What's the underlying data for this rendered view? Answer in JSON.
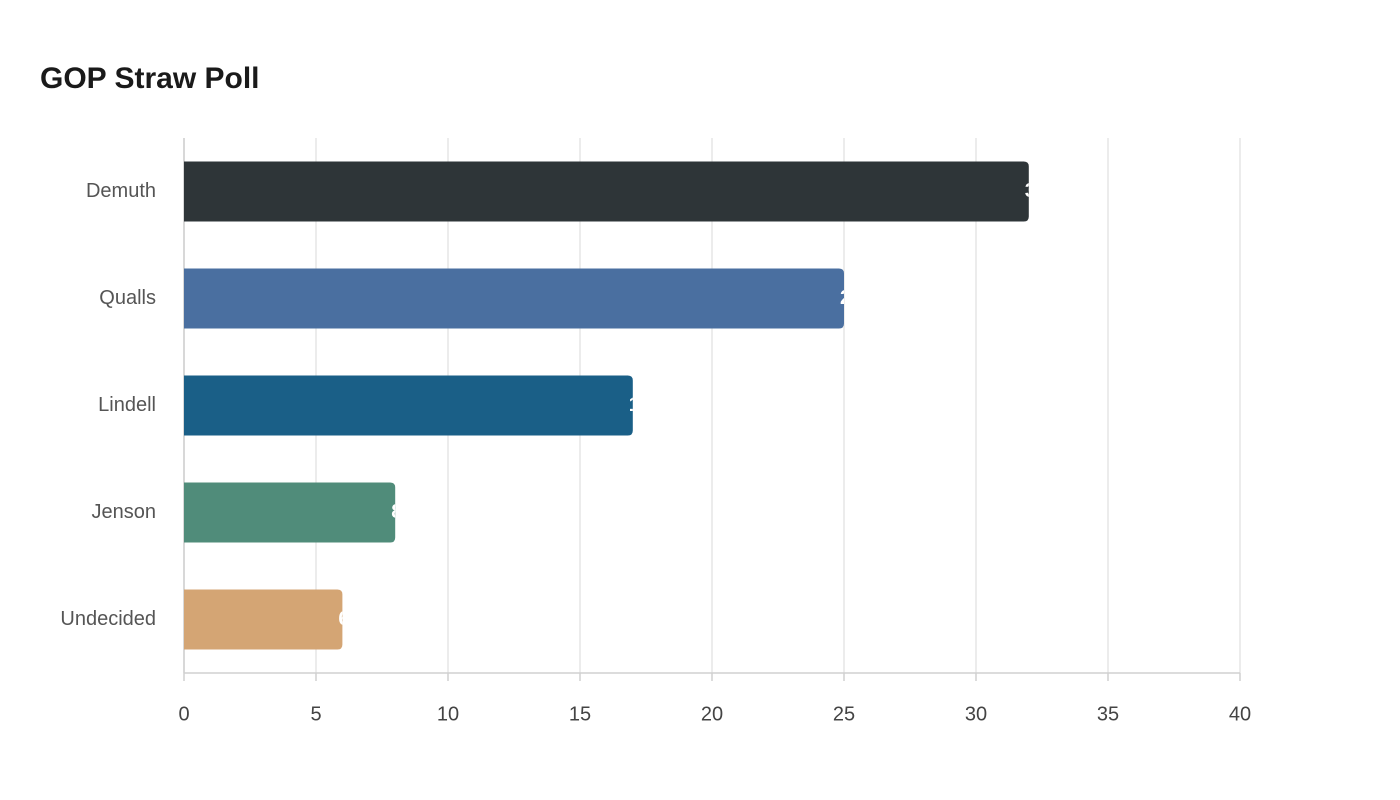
{
  "chart_data": {
    "type": "bar",
    "orientation": "horizontal",
    "title": "GOP Straw Poll",
    "categories": [
      "Demuth",
      "Qualls",
      "Lindell",
      "Jenson",
      "Undecided"
    ],
    "values": [
      32,
      25,
      17,
      8,
      6
    ],
    "colors": [
      "#2e3538",
      "#4a6fa0",
      "#1a5f87",
      "#508c7a",
      "#d4a574"
    ],
    "xlim": [
      0,
      40
    ],
    "xticks": [
      0,
      5,
      10,
      15,
      20,
      25,
      30,
      35,
      40
    ],
    "grid": true
  }
}
